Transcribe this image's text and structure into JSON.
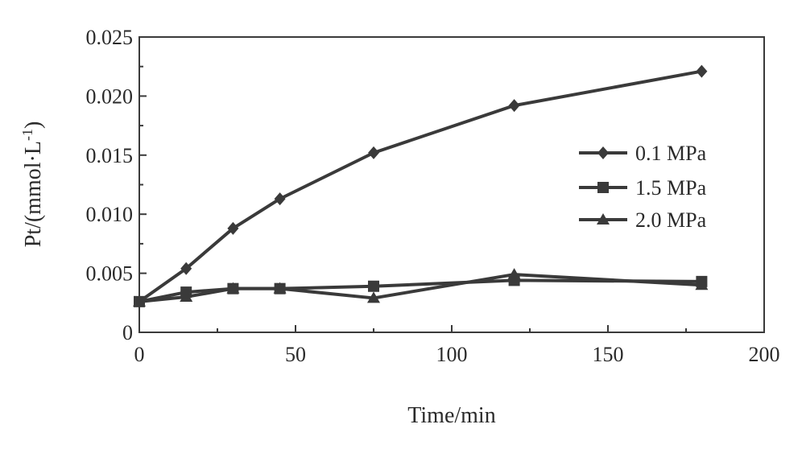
{
  "chart_data": {
    "type": "line",
    "title": "",
    "xlabel": "Time/min",
    "ylabel": "Pt/(mmol·L",
    "ylabel_sup": "-1",
    "ylabel_end": ")",
    "xlim": [
      0,
      200
    ],
    "ylim": [
      0,
      0.025
    ],
    "x_ticks": [
      0,
      50,
      100,
      150,
      200
    ],
    "x_tick_labels": [
      "0",
      "50",
      "100",
      "150",
      "200"
    ],
    "y_ticks": [
      0,
      0.005,
      0.01,
      0.015,
      0.02,
      0.025
    ],
    "y_tick_labels": [
      "0",
      "0.005",
      "0.010",
      "0.015",
      "0.020",
      "0.025"
    ],
    "grid": false,
    "legend_position": "right",
    "line_color": "#3a3a3a",
    "series": [
      {
        "name": "0.1 MPa",
        "marker": "diamond",
        "x": [
          0,
          15,
          30,
          45,
          75,
          120,
          180
        ],
        "y": [
          0.0026,
          0.0054,
          0.0088,
          0.0113,
          0.0152,
          0.0192,
          0.0221
        ]
      },
      {
        "name": "1.5 MPa",
        "marker": "square",
        "x": [
          0,
          15,
          30,
          45,
          75,
          120,
          180
        ],
        "y": [
          0.0026,
          0.0034,
          0.0037,
          0.0037,
          0.0039,
          0.0044,
          0.0043
        ]
      },
      {
        "name": "2.0 MPa",
        "marker": "triangle",
        "x": [
          0,
          15,
          30,
          45,
          75,
          120,
          180
        ],
        "y": [
          0.0026,
          0.003,
          0.0037,
          0.0037,
          0.0029,
          0.0049,
          0.004
        ]
      }
    ]
  }
}
